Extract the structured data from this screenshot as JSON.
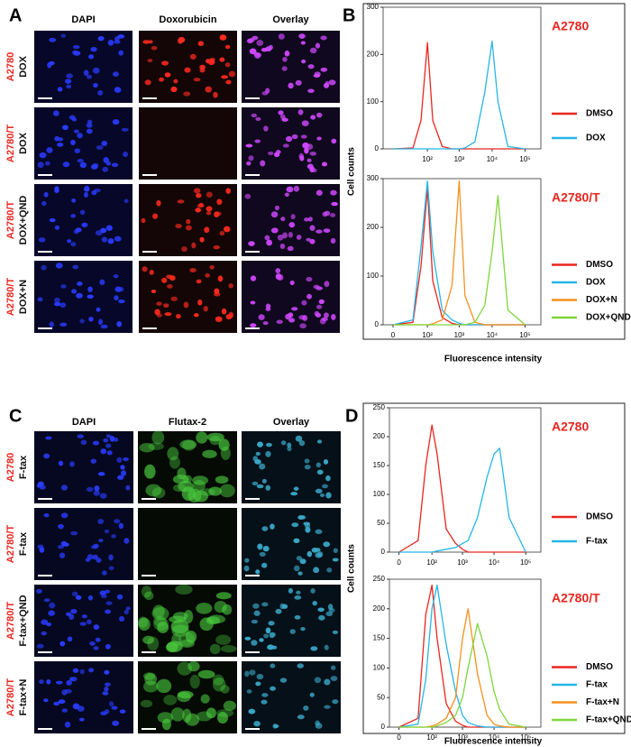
{
  "image_panels": [
    {
      "label": "A",
      "columns": [
        "DAPI",
        "Doxorubicin",
        "Overlay"
      ],
      "rows": [
        {
          "line": "A2780",
          "treatment": "DOX"
        },
        {
          "line": "A2780/T",
          "treatment": "DOX"
        },
        {
          "line": "A2780/T",
          "treatment": "DOX+QND"
        },
        {
          "line": "A2780/T",
          "treatment": "DOX+N"
        }
      ]
    },
    {
      "label": "C",
      "columns": [
        "DAPI",
        "Flutax-2",
        "Overlay"
      ],
      "rows": [
        {
          "line": "A2780",
          "treatment": "F-tax"
        },
        {
          "line": "A2780/T",
          "treatment": "F-tax"
        },
        {
          "line": "A2780/T",
          "treatment": "F-tax+QND"
        },
        {
          "line": "A2780/T",
          "treatment": "F-tax+N"
        }
      ]
    }
  ],
  "chart_data": [
    {
      "type": "line",
      "panel_label": "B",
      "title": "A2780",
      "ylabel": "Cell counts",
      "x": [
        0,
        30,
        60,
        100,
        150,
        300,
        600,
        1000,
        1500,
        3000,
        6000,
        10000,
        15000,
        30000,
        100000
      ],
      "series": [
        {
          "name": "DMSO",
          "color": "#e8261f",
          "values": [
            0,
            2,
            60,
            225,
            60,
            5,
            0,
            0,
            0,
            0,
            0,
            0,
            0,
            0,
            0
          ]
        },
        {
          "name": "DOX",
          "color": "#26b5e8",
          "values": [
            0,
            0,
            0,
            0,
            0,
            0,
            0,
            0,
            2,
            15,
            120,
            228,
            100,
            5,
            0
          ]
        }
      ],
      "xlim": [
        -5,
        300000
      ],
      "ylim": [
        0,
        300
      ],
      "xticks": [
        {
          "value": 100,
          "label": "10²"
        },
        {
          "value": 1000,
          "label": "10³"
        },
        {
          "value": 10000,
          "label": "10⁴"
        },
        {
          "value": 100000,
          "label": "10⁵"
        }
      ],
      "yticks": [
        0,
        100,
        200,
        300
      ],
      "legend": "right"
    },
    {
      "type": "line",
      "title": "A2780/T",
      "xlabel": "Fluorescence intensity",
      "x": [
        0,
        30,
        60,
        100,
        150,
        300,
        600,
        1000,
        1500,
        3000,
        6000,
        10000,
        15000,
        30000,
        100000
      ],
      "series": [
        {
          "name": "DMSO",
          "color": "#e8261f",
          "values": [
            0,
            5,
            120,
            280,
            90,
            15,
            3,
            0,
            0,
            0,
            0,
            0,
            0,
            0,
            0
          ]
        },
        {
          "name": "DOX",
          "color": "#26b5e8",
          "values": [
            0,
            10,
            160,
            295,
            150,
            30,
            10,
            3,
            0,
            0,
            0,
            0,
            0,
            0,
            0
          ]
        },
        {
          "name": "DOX+N",
          "color": "#f5901e",
          "values": [
            0,
            0,
            0,
            0,
            2,
            10,
            80,
            295,
            60,
            5,
            0,
            0,
            0,
            0,
            0
          ]
        },
        {
          "name": "DOX+QND",
          "color": "#7ed63a",
          "values": [
            0,
            0,
            0,
            0,
            0,
            0,
            0,
            0,
            0,
            5,
            40,
            150,
            265,
            30,
            0
          ]
        }
      ],
      "xlim": [
        -5,
        300000
      ],
      "ylim": [
        0,
        300
      ],
      "xticks": [
        0,
        {
          "value": 100,
          "label": "10²"
        },
        {
          "value": 1000,
          "label": "10³"
        },
        {
          "value": 10000,
          "label": "10⁴"
        },
        {
          "value": 100000,
          "label": "10⁵"
        }
      ],
      "yticks": [
        0,
        100,
        200,
        300
      ],
      "legend": "right"
    },
    {
      "type": "line",
      "panel_label": "D",
      "title": "A2780",
      "ylabel": "Cell counts",
      "x": [
        0,
        30,
        60,
        100,
        150,
        300,
        600,
        1000,
        1500,
        3000,
        6000,
        10000,
        15000,
        30000,
        100000
      ],
      "series": [
        {
          "name": "DMSO",
          "color": "#e8261f",
          "values": [
            0,
            20,
            150,
            220,
            170,
            40,
            15,
            5,
            0,
            0,
            0,
            0,
            0,
            0,
            0
          ]
        },
        {
          "name": "F-tax",
          "color": "#26b5e8",
          "values": [
            0,
            0,
            0,
            0,
            2,
            5,
            8,
            15,
            20,
            60,
            130,
            170,
            180,
            60,
            0
          ]
        }
      ],
      "xlim": [
        -5,
        300000
      ],
      "ylim": [
        0,
        250
      ],
      "xticks": [
        0,
        {
          "value": 100,
          "label": "10²"
        },
        {
          "value": 1000,
          "label": "10³"
        },
        {
          "value": 10000,
          "label": "10⁴"
        },
        {
          "value": 100000,
          "label": "10⁵"
        }
      ],
      "yticks": [
        0,
        50,
        100,
        150,
        200,
        250
      ],
      "legend": "right"
    },
    {
      "type": "line",
      "title": "A2780/T",
      "xlabel": "Fluorescence intensity",
      "x": [
        0,
        30,
        60,
        100,
        150,
        300,
        600,
        1000,
        1500,
        3000,
        6000,
        10000,
        15000,
        30000,
        100000
      ],
      "series": [
        {
          "name": "DMSO",
          "color": "#e8261f",
          "values": [
            0,
            15,
            190,
            240,
            150,
            40,
            10,
            3,
            0,
            0,
            0,
            0,
            0,
            0,
            0
          ]
        },
        {
          "name": "F-tax",
          "color": "#26b5e8",
          "values": [
            0,
            5,
            80,
            200,
            240,
            140,
            60,
            20,
            8,
            2,
            0,
            0,
            0,
            0,
            0
          ]
        },
        {
          "name": "F-tax+N",
          "color": "#f5901e",
          "values": [
            0,
            0,
            0,
            2,
            5,
            15,
            50,
            150,
            200,
            90,
            20,
            5,
            2,
            0,
            0
          ]
        },
        {
          "name": "F-tax+QND",
          "color": "#7ed63a",
          "values": [
            0,
            0,
            0,
            0,
            2,
            8,
            20,
            50,
            100,
            175,
            120,
            60,
            30,
            5,
            0
          ]
        }
      ],
      "xlim": [
        -5,
        300000
      ],
      "ylim": [
        0,
        250
      ],
      "xticks": [
        0,
        {
          "value": 100,
          "label": "10²"
        },
        {
          "value": 1000,
          "label": "10³"
        },
        {
          "value": 10000,
          "label": "10⁴"
        },
        {
          "value": 100000,
          "label": "10⁵"
        }
      ],
      "yticks": [
        0,
        50,
        100,
        150,
        200,
        250
      ],
      "legend": "right"
    }
  ]
}
